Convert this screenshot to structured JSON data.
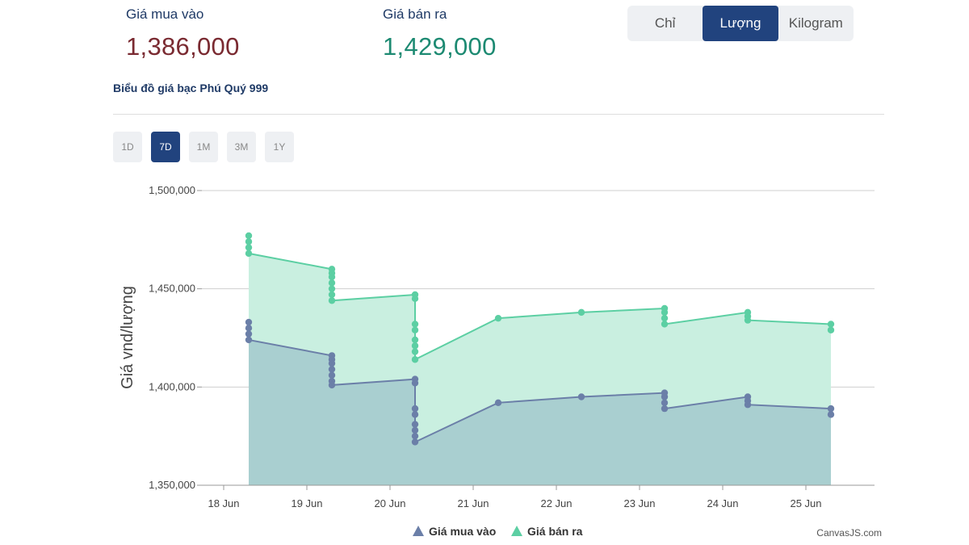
{
  "summary": {
    "buy_label": "Giá mua vào",
    "buy_value": "1,386,000",
    "sell_label": "Giá bán ra",
    "sell_value": "1,429,000"
  },
  "units": {
    "options": [
      "Chỉ",
      "Lượng",
      "Kilogram"
    ],
    "selected": "Lượng"
  },
  "ranges": {
    "options": [
      "1D",
      "7D",
      "1M",
      "3M",
      "1Y"
    ],
    "selected": "7D"
  },
  "chart_data": {
    "type": "area",
    "title": "Biểu đồ giá bạc Phú Quý 999",
    "ylabel": "Giá vnd/lượng",
    "xlabel": "",
    "ylim": [
      1350000,
      1500000
    ],
    "yticks": [
      1350000,
      1400000,
      1450000,
      1500000
    ],
    "ytick_labels": [
      "1,350,000",
      "1,400,000",
      "1,450,000",
      "1,500,000"
    ],
    "xticks": [
      "18 Jun",
      "19 Jun",
      "20 Jun",
      "21 Jun",
      "22 Jun",
      "23 Jun",
      "24 Jun",
      "25 Jun"
    ],
    "grid": true,
    "legend_position": "bottom-center",
    "colors": {
      "buy": "#6b7fa8",
      "buy_fill": "#a9cfd0",
      "sell": "#5ccfa3",
      "sell_fill": "#c9efe0"
    },
    "series": [
      {
        "name": "Giá mua vào",
        "points": [
          {
            "x": "18 Jun",
            "values": [
              1433000,
              1430000,
              1427000,
              1424000
            ]
          },
          {
            "x": "19 Jun",
            "values": [
              1416000,
              1414000,
              1412000,
              1409000,
              1406000,
              1403000,
              1401000
            ]
          },
          {
            "x": "20 Jun",
            "values": [
              1404000,
              1402000,
              1389000,
              1386000,
              1381000,
              1378000,
              1375000,
              1372000
            ]
          },
          {
            "x": "21 Jun",
            "values": [
              1392000
            ]
          },
          {
            "x": "22 Jun",
            "values": [
              1395000
            ]
          },
          {
            "x": "23 Jun",
            "values": [
              1397000,
              1395000,
              1392000,
              1389000
            ]
          },
          {
            "x": "24 Jun",
            "values": [
              1395000,
              1393000,
              1391000
            ]
          },
          {
            "x": "25 Jun",
            "values": [
              1389000,
              1386000
            ]
          }
        ]
      },
      {
        "name": "Giá bán ra",
        "points": [
          {
            "x": "18 Jun",
            "values": [
              1477000,
              1474000,
              1471000,
              1468000
            ]
          },
          {
            "x": "19 Jun",
            "values": [
              1460000,
              1458000,
              1456000,
              1453000,
              1450000,
              1447000,
              1444000
            ]
          },
          {
            "x": "20 Jun",
            "values": [
              1447000,
              1445000,
              1432000,
              1429000,
              1424000,
              1421000,
              1418000,
              1414000
            ]
          },
          {
            "x": "21 Jun",
            "values": [
              1435000
            ]
          },
          {
            "x": "22 Jun",
            "values": [
              1438000
            ]
          },
          {
            "x": "23 Jun",
            "values": [
              1440000,
              1438000,
              1435000,
              1432000
            ]
          },
          {
            "x": "24 Jun",
            "values": [
              1438000,
              1436000,
              1434000
            ]
          },
          {
            "x": "25 Jun",
            "values": [
              1432000,
              1429000
            ]
          }
        ]
      }
    ],
    "credit": "CanvasJS.com"
  }
}
